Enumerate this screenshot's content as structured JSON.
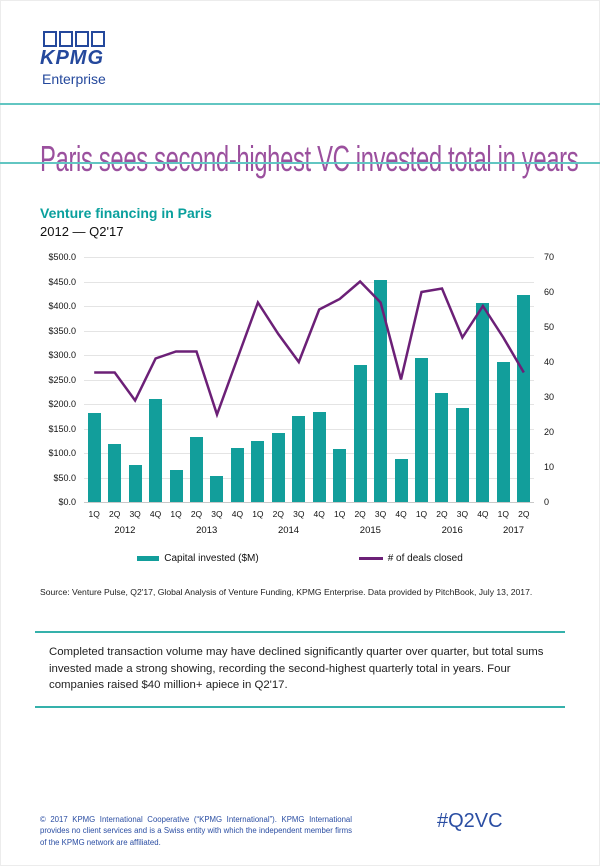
{
  "logo": {
    "name": "KPMG",
    "subtitle": "Enterprise"
  },
  "headline": "Paris sees second-highest VC invested total in years",
  "chart": {
    "title": "Venture financing in Paris",
    "subtitle": "2012 — Q2'17",
    "legend": [
      {
        "label": "Capital invested ($M)"
      },
      {
        "label": "# of deals closed"
      }
    ],
    "source": "Source: Venture Pulse, Q2'17, Global Analysis of Venture Funding, KPMG Enterprise. Data provided by PitchBook, July 13, 2017."
  },
  "chart_data": {
    "type": "combo-bar-line",
    "title": "Venture financing in Paris",
    "subtitle": "2012 — Q2'17",
    "categories": [
      "1Q",
      "2Q",
      "3Q",
      "4Q",
      "1Q",
      "2Q",
      "3Q",
      "4Q",
      "1Q",
      "2Q",
      "3Q",
      "4Q",
      "1Q",
      "2Q",
      "3Q",
      "4Q",
      "1Q",
      "2Q",
      "3Q",
      "4Q",
      "1Q",
      "2Q"
    ],
    "year_groups": [
      {
        "label": "2012",
        "start": 0,
        "end": 3
      },
      {
        "label": "2013",
        "start": 4,
        "end": 7
      },
      {
        "label": "2014",
        "start": 8,
        "end": 11
      },
      {
        "label": "2015",
        "start": 12,
        "end": 15
      },
      {
        "label": "2016",
        "start": 16,
        "end": 19
      },
      {
        "label": "2017",
        "start": 20,
        "end": 21
      }
    ],
    "series": [
      {
        "name": "Capital invested ($M)",
        "type": "bar",
        "axis": "left",
        "color": "#129e9b",
        "values": [
          182,
          118,
          76,
          210,
          65,
          133,
          53,
          111,
          124,
          141,
          175,
          184,
          108,
          280,
          453,
          88,
          294,
          222,
          192,
          406,
          285,
          422
        ]
      },
      {
        "name": "# of deals closed",
        "type": "line",
        "axis": "right",
        "color": "#6c2077",
        "values": [
          37,
          37,
          29,
          41,
          43,
          43,
          25,
          41,
          57,
          48,
          40,
          55,
          58,
          63,
          57,
          35,
          60,
          61,
          47,
          56,
          47,
          37
        ]
      }
    ],
    "left_axis": {
      "min": 0,
      "max": 500,
      "tick_labels_top_to_bottom": [
        "$500.0",
        "$450.0",
        "$400.0",
        "$350.0",
        "$300.0",
        "$250.0",
        "$200.0",
        "$150.0",
        "$100.0",
        "$50.0",
        "$0.0"
      ]
    },
    "right_axis": {
      "min": 0,
      "max": 70,
      "tick_labels_top_to_bottom": [
        "70",
        "60",
        "50",
        "40",
        "30",
        "20",
        "10",
        "0"
      ]
    },
    "grid": true,
    "legend_position": "bottom"
  },
  "callout": "Completed transaction volume may have declined significantly quarter over quarter, but total sums invested made a strong showing, recording the second-highest quarterly total in years. Four companies raised $40 million+ apiece in Q2'17.",
  "footer": {
    "copyright": "© 2017 KPMG International Cooperative (“KPMG International”). KPMG International provides no client services and is a Swiss entity with which the independent member firms of the KPMG network are affiliated.",
    "hashtag": "#Q2VC"
  }
}
